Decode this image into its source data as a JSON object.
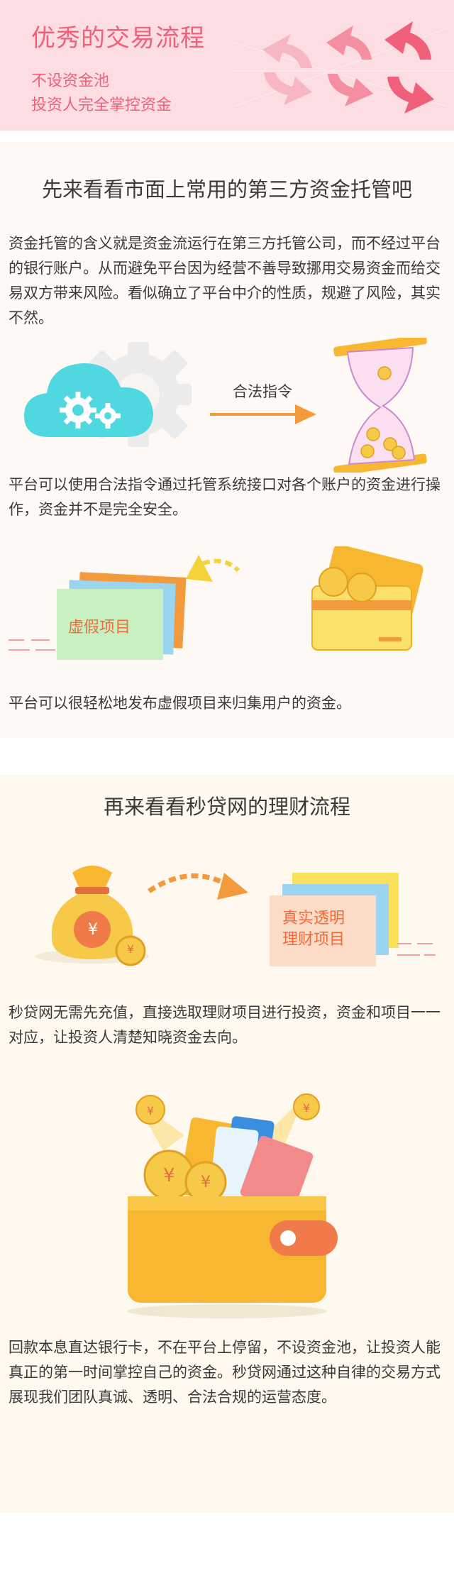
{
  "header": {
    "title": "优秀的交易流程",
    "subtitle_1": "不设资金池",
    "subtitle_2": "投资人完全掌控资金"
  },
  "section_custody": {
    "heading": "先来看看市面上常用的第三方资金托管吧",
    "paragraph_1": "资金托管的含义就是资金流运行在第三方托管公司，而不经过平台的银行账户。从而避免平台因为经营不善导致挪用交易资金而给交易双方带来风险。看似确立了平台中介的性质，规避了风险，其实不然。",
    "arrow_label": "合法指令",
    "paragraph_2": "平台可以使用合法指令通过托管系统接口对各个账户的资金进行操作，资金并不是完全安全。",
    "fake_project_label": "虚假项目",
    "paragraph_3": "平台可以很轻松地发布虚假项目来归集用户的资金。"
  },
  "section_flow": {
    "heading": "再来看看秒贷网的理财流程",
    "real_project_label_1": "真实透明",
    "real_project_label_2": "理财项目",
    "paragraph_4": "秒贷网无需先充值，直接选取理财项目进行投资，资金和项目一一对应，让投资人清楚知晓资金去向。",
    "paragraph_5": "回款本息直达银行卡，不在平台上停留，不设资金池，让投资人能真正的第一时间掌控自己的资金。秒贷网通过这种自律的交易方式展现我们团队真诚、透明、合法合规的运营态度。"
  },
  "icons": {
    "currency_symbol": "¥"
  },
  "colors": {
    "header_bg": "#fcdde1",
    "accent_pink": "#f0607a",
    "orange": "#f39a3c",
    "cloud_cyan": "#4fd8e0",
    "gold": "#f7b731"
  }
}
